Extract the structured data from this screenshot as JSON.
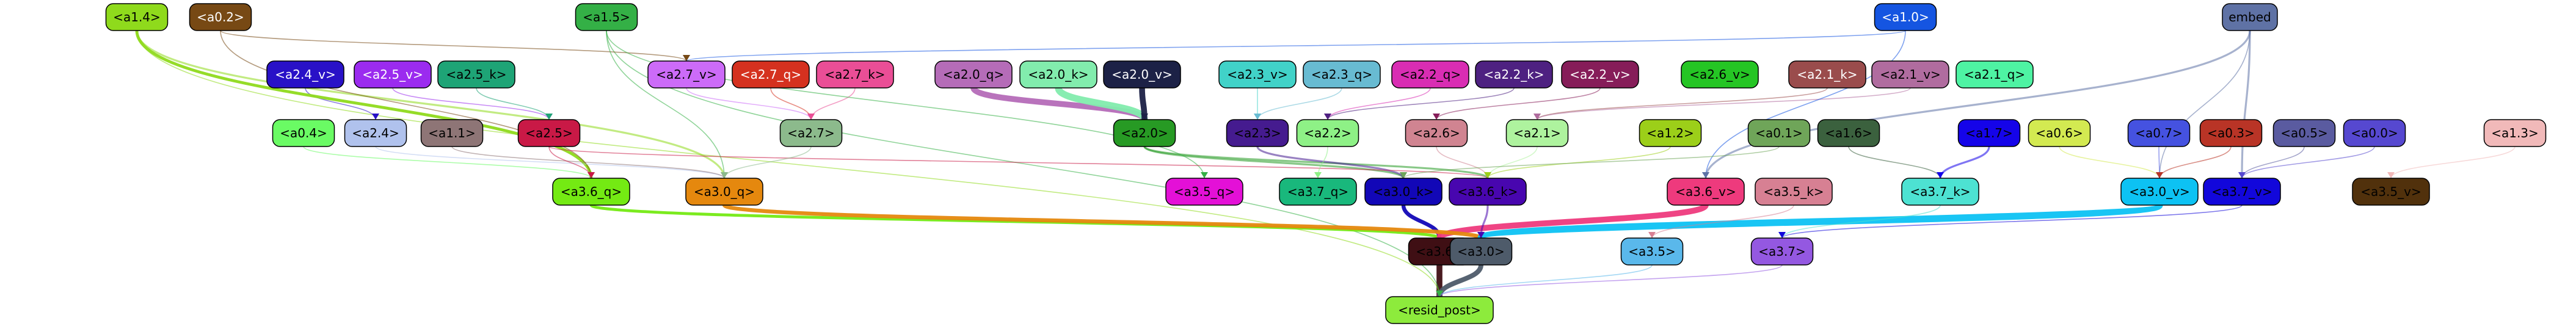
{
  "diagram": {
    "title": "",
    "nodes": [
      {
        "id": "a1.4",
        "label": "<a1.4>",
        "fill": "#8fda1c",
        "text": "#000000"
      },
      {
        "id": "a0.2",
        "label": "<a0.2>",
        "fill": "#774914",
        "text": "#ffffff"
      },
      {
        "id": "a1.5",
        "label": "<a1.5>",
        "fill": "#34b046",
        "text": "#000000"
      },
      {
        "id": "a1.0",
        "label": "<a1.0>",
        "fill": "#1555e1",
        "text": "#ffffff"
      },
      {
        "id": "embed",
        "label": "embed",
        "fill": "#5f72a5",
        "text": "#000000"
      },
      {
        "id": "a2.4_v",
        "label": "<a2.4_v>",
        "fill": "#2911c7",
        "text": "#ffffff"
      },
      {
        "id": "a2.5_v",
        "label": "<a2.5_v>",
        "fill": "#9b2bef",
        "text": "#ffffff"
      },
      {
        "id": "a2.5_k",
        "label": "<a2.5_k>",
        "fill": "#1ea476",
        "text": "#000000"
      },
      {
        "id": "a2.7_v",
        "label": "<a2.7_v>",
        "fill": "#cc6bf8",
        "text": "#000000"
      },
      {
        "id": "a2.7_q",
        "label": "<a2.7_q>",
        "fill": "#d5311f",
        "text": "#ffffff"
      },
      {
        "id": "a2.7_k",
        "label": "<a2.7_k>",
        "fill": "#ea4e96",
        "text": "#000000"
      },
      {
        "id": "a2.0_q",
        "label": "<a2.0_q>",
        "fill": "#b56cb8",
        "text": "#000000"
      },
      {
        "id": "a2.0_k",
        "label": "<a2.0_k>",
        "fill": "#82ecad",
        "text": "#000000"
      },
      {
        "id": "a2.0_v",
        "label": "<a2.0_v>",
        "fill": "#1c2146",
        "text": "#ffffff"
      },
      {
        "id": "a2.3_v",
        "label": "<a2.3_v>",
        "fill": "#41d2c8",
        "text": "#000000"
      },
      {
        "id": "a2.3_q",
        "label": "<a2.3_q>",
        "fill": "#68bbd2",
        "text": "#000000"
      },
      {
        "id": "a2.2_q",
        "label": "<a2.2_q>",
        "fill": "#d92db3",
        "text": "#000000"
      },
      {
        "id": "a2.2_k",
        "label": "<a2.2_k>",
        "fill": "#4e2181",
        "text": "#ffffff"
      },
      {
        "id": "a2.2_v",
        "label": "<a2.2_v>",
        "fill": "#861d59",
        "text": "#ffffff"
      },
      {
        "id": "a2.6_v",
        "label": "<a2.6_v>",
        "fill": "#25c524",
        "text": "#000000"
      },
      {
        "id": "a2.1_k",
        "label": "<a2.1_k>",
        "fill": "#9a4c4c",
        "text": "#ffffff"
      },
      {
        "id": "a2.1_v",
        "label": "<a2.1_v>",
        "fill": "#b06c9f",
        "text": "#000000"
      },
      {
        "id": "a2.1_q",
        "label": "<a2.1_q>",
        "fill": "#4ef3a3",
        "text": "#000000"
      },
      {
        "id": "a0.4",
        "label": "<a0.4>",
        "fill": "#6afb64",
        "text": "#000000"
      },
      {
        "id": "a2.4",
        "label": "<a2.4>",
        "fill": "#b0c2ed",
        "text": "#000000"
      },
      {
        "id": "a1.1",
        "label": "<a1.1>",
        "fill": "#8e7576",
        "text": "#000000"
      },
      {
        "id": "a2.5",
        "label": "<a2.5>",
        "fill": "#c91946",
        "text": "#000000"
      },
      {
        "id": "a2.7",
        "label": "<a2.7>",
        "fill": "#8cba8c",
        "text": "#000000"
      },
      {
        "id": "a2.0",
        "label": "<a2.0>",
        "fill": "#279a24",
        "text": "#000000"
      },
      {
        "id": "a2.3",
        "label": "<a2.3>",
        "fill": "#451b8f",
        "text": "#000000"
      },
      {
        "id": "a2.2",
        "label": "<a2.2>",
        "fill": "#8ef186",
        "text": "#000000"
      },
      {
        "id": "a2.6",
        "label": "<a2.6>",
        "fill": "#d08491",
        "text": "#000000"
      },
      {
        "id": "a2.1",
        "label": "<a2.1>",
        "fill": "#aef39e",
        "text": "#000000"
      },
      {
        "id": "a1.2",
        "label": "<a1.2>",
        "fill": "#9ccf19",
        "text": "#000000"
      },
      {
        "id": "a0.1",
        "label": "<a0.1>",
        "fill": "#6fa559",
        "text": "#000000"
      },
      {
        "id": "a1.6",
        "label": "<a1.6>",
        "fill": "#3b613e",
        "text": "#000000"
      },
      {
        "id": "a1.7",
        "label": "<a1.7>",
        "fill": "#1504e9",
        "text": "#000000"
      },
      {
        "id": "a0.6",
        "label": "<a0.6>",
        "fill": "#d3ea51",
        "text": "#000000"
      },
      {
        "id": "a0.7",
        "label": "<a0.7>",
        "fill": "#4552e0",
        "text": "#000000"
      },
      {
        "id": "a0.3",
        "label": "<a0.3>",
        "fill": "#b93426",
        "text": "#000000"
      },
      {
        "id": "a0.5",
        "label": "<a0.5>",
        "fill": "#5a5ba0",
        "text": "#000000"
      },
      {
        "id": "a0.0",
        "label": "<a0.0>",
        "fill": "#5648d0",
        "text": "#000000"
      },
      {
        "id": "a1.3",
        "label": "<a1.3>",
        "fill": "#f1b9b9",
        "text": "#000000"
      },
      {
        "id": "a3.6_q",
        "label": "<a3.6_q>",
        "fill": "#74ea13",
        "text": "#000000"
      },
      {
        "id": "a3.0_q",
        "label": "<a3.0_q>",
        "fill": "#e5880e",
        "text": "#000000"
      },
      {
        "id": "a3.5_q",
        "label": "<a3.5_q>",
        "fill": "#e410d7",
        "text": "#000000"
      },
      {
        "id": "a3.7_q",
        "label": "<a3.7_q>",
        "fill": "#19b87c",
        "text": "#000000"
      },
      {
        "id": "a3.0_k",
        "label": "<a3.0_k>",
        "fill": "#1207b7",
        "text": "#000000"
      },
      {
        "id": "a3.6_k",
        "label": "<a3.6_k>",
        "fill": "#4806af",
        "text": "#000000"
      },
      {
        "id": "a3.6_v",
        "label": "<a3.6_v>",
        "fill": "#ee3a7d",
        "text": "#000000"
      },
      {
        "id": "a3.5_k",
        "label": "<a3.5_k>",
        "fill": "#d78093",
        "text": "#000000"
      },
      {
        "id": "a3.7_k",
        "label": "<a3.7_k>",
        "fill": "#4de2d2",
        "text": "#000000"
      },
      {
        "id": "a3.0_v",
        "label": "<a3.0_v>",
        "fill": "#0dc2f3",
        "text": "#000000"
      },
      {
        "id": "a3.7_v",
        "label": "<a3.7_v>",
        "fill": "#1207db",
        "text": "#000000"
      },
      {
        "id": "a3.5_v",
        "label": "<a3.5_v>",
        "fill": "#51310c",
        "text": "#000000"
      },
      {
        "id": "a3.6",
        "label": "<a3.6>",
        "fill": "#3f0f14",
        "text": "#000000"
      },
      {
        "id": "a3.0",
        "label": "<a3.0>",
        "fill": "#4e5b6a",
        "text": "#000000"
      },
      {
        "id": "a3.5",
        "label": "<a3.5>",
        "fill": "#5ab8eb",
        "text": "#000000"
      },
      {
        "id": "a3.7",
        "label": "<a3.7>",
        "fill": "#9458e1",
        "text": "#000000"
      },
      {
        "id": "resid_post",
        "label": "<resid_post>",
        "fill": "#8deb3c",
        "text": "#000000"
      }
    ],
    "edges": [
      {
        "from": "a3.6",
        "to": "resid_post",
        "color": "#3f0f14",
        "weight": 6
      },
      {
        "from": "a3.0",
        "to": "resid_post",
        "color": "#4e5b6a",
        "weight": 5
      },
      {
        "from": "a3.5",
        "to": "resid_post",
        "color": "#5ab8eb",
        "weight": 1
      },
      {
        "from": "a3.7",
        "to": "resid_post",
        "color": "#9458e1",
        "weight": 1
      },
      {
        "from": "a1.4",
        "to": "resid_post",
        "color": "#8fda1c",
        "weight": 1
      },
      {
        "from": "a1.5",
        "to": "resid_post",
        "color": "#34b046",
        "weight": 1
      },
      {
        "from": "a3.6_q",
        "to": "a3.6",
        "color": "#74ea13",
        "weight": 3
      },
      {
        "from": "a3.0_k",
        "to": "a3.6",
        "color": "#1207b7",
        "weight": 4
      },
      {
        "from": "a3.6_v",
        "to": "a3.6",
        "color": "#ee3a7d",
        "weight": 6
      },
      {
        "from": "a3.0_q",
        "to": "a3.0",
        "color": "#e5880e",
        "weight": 4
      },
      {
        "from": "a3.0_v",
        "to": "a3.0",
        "color": "#0dc2f3",
        "weight": 7
      },
      {
        "from": "a3.6_k",
        "to": "a3.0",
        "color": "#4806af",
        "weight": 2
      },
      {
        "from": "a3.5_k",
        "to": "a3.5",
        "color": "#d78093",
        "weight": 1
      },
      {
        "from": "a3.7_k",
        "to": "a3.7",
        "color": "#4de2d2",
        "weight": 1
      },
      {
        "from": "a3.7_v",
        "to": "a3.7",
        "color": "#1207db",
        "weight": 1
      },
      {
        "from": "a2.0_q",
        "to": "a2.0",
        "color": "#b56cb8",
        "weight": 6
      },
      {
        "from": "a2.0_k",
        "to": "a2.0",
        "color": "#82ecad",
        "weight": 7
      },
      {
        "from": "a2.0_v",
        "to": "a2.0",
        "color": "#1c2146",
        "weight": 6
      },
      {
        "from": "a2.0",
        "to": "a3.0_k",
        "color": "#279a24",
        "weight": 2
      },
      {
        "from": "a2.0",
        "to": "a3.6_k",
        "color": "#279a24",
        "weight": 2
      },
      {
        "from": "a2.3",
        "to": "a3.0_k",
        "color": "#451b8f",
        "weight": 2
      },
      {
        "from": "a2.7_v",
        "to": "a2.7",
        "color": "#cc6bf8",
        "weight": 1
      },
      {
        "from": "a2.7_q",
        "to": "a2.7",
        "color": "#d5311f",
        "weight": 1
      },
      {
        "from": "a2.7_k",
        "to": "a2.7",
        "color": "#ea4e96",
        "weight": 1
      },
      {
        "from": "a2.5_v",
        "to": "a2.5",
        "color": "#9b2bef",
        "weight": 1
      },
      {
        "from": "a2.5_k",
        "to": "a2.5",
        "color": "#1ea476",
        "weight": 1
      },
      {
        "from": "a2.4_v",
        "to": "a2.4",
        "color": "#2911c7",
        "weight": 1
      },
      {
        "from": "a2.3_v",
        "to": "a2.3",
        "color": "#41d2c8",
        "weight": 1
      },
      {
        "from": "a2.3_q",
        "to": "a2.3",
        "color": "#68bbd2",
        "weight": 1
      },
      {
        "from": "a2.2_q",
        "to": "a2.2",
        "color": "#d92db3",
        "weight": 1
      },
      {
        "from": "a2.2_k",
        "to": "a2.2",
        "color": "#4e2181",
        "weight": 1
      },
      {
        "from": "a2.2_v",
        "to": "a2.6",
        "color": "#861d59",
        "weight": 1
      },
      {
        "from": "a2.1_k",
        "to": "a2.1",
        "color": "#9a4c4c",
        "weight": 1
      },
      {
        "from": "a2.1_v",
        "to": "a2.1",
        "color": "#b06c9f",
        "weight": 1
      },
      {
        "from": "a1.0",
        "to": "a2.7_v",
        "color": "#1555e1",
        "weight": 1
      },
      {
        "from": "a1.0",
        "to": "a3.6_v",
        "color": "#1555e1",
        "weight": 1
      },
      {
        "from": "embed",
        "to": "a3.6_v",
        "color": "#5f72a5",
        "weight": 2
      },
      {
        "from": "embed",
        "to": "a3.7_v",
        "color": "#5f72a5",
        "weight": 2
      },
      {
        "from": "embed",
        "to": "a3.0_v",
        "color": "#5f72a5",
        "weight": 1
      },
      {
        "from": "a1.4",
        "to": "a3.6_q",
        "color": "#8fda1c",
        "weight": 3
      },
      {
        "from": "a1.4",
        "to": "a3.0_q",
        "color": "#8fda1c",
        "weight": 2
      },
      {
        "from": "a0.2",
        "to": "a3.6_q",
        "color": "#774914",
        "weight": 1
      },
      {
        "from": "a0.2",
        "to": "a2.7_v",
        "color": "#774914",
        "weight": 1
      },
      {
        "from": "a1.5",
        "to": "a3.0_q",
        "color": "#34b046",
        "weight": 1
      },
      {
        "from": "a1.5",
        "to": "a3.5_q",
        "color": "#34b046",
        "weight": 1
      },
      {
        "from": "a0.4",
        "to": "a3.6_q",
        "color": "#6afb64",
        "weight": 1
      },
      {
        "from": "a2.4",
        "to": "a3.0_q",
        "color": "#b0c2ed",
        "weight": 1
      },
      {
        "from": "a1.1",
        "to": "a3.0_q",
        "color": "#8e7576",
        "weight": 1
      },
      {
        "from": "a2.5",
        "to": "a3.6_q",
        "color": "#c91946",
        "weight": 1
      },
      {
        "from": "a2.5",
        "to": "a3.6_k",
        "color": "#c91946",
        "weight": 1
      },
      {
        "from": "a2.7",
        "to": "a3.0_q",
        "color": "#8cba8c",
        "weight": 1
      },
      {
        "from": "a2.2",
        "to": "a3.7_q",
        "color": "#8ef186",
        "weight": 1
      },
      {
        "from": "a2.6",
        "to": "a3.6_k",
        "color": "#d08491",
        "weight": 1
      },
      {
        "from": "a2.1",
        "to": "a3.6_k",
        "color": "#aef39e",
        "weight": 1
      },
      {
        "from": "a1.2",
        "to": "a3.6_k",
        "color": "#9ccf19",
        "weight": 1
      },
      {
        "from": "a0.1",
        "to": "a3.0_k",
        "color": "#6fa559",
        "weight": 1
      },
      {
        "from": "a1.6",
        "to": "a3.7_k",
        "color": "#3b613e",
        "weight": 1
      },
      {
        "from": "a1.7",
        "to": "a3.7_k",
        "color": "#1504e9",
        "weight": 2
      },
      {
        "from": "a0.6",
        "to": "a3.0_v",
        "color": "#d3ea51",
        "weight": 1
      },
      {
        "from": "a0.7",
        "to": "a3.0_v",
        "color": "#4552e0",
        "weight": 1
      },
      {
        "from": "a0.3",
        "to": "a3.0_v",
        "color": "#b93426",
        "weight": 1
      },
      {
        "from": "a0.5",
        "to": "a3.7_v",
        "color": "#5a5ba0",
        "weight": 1
      },
      {
        "from": "a0.0",
        "to": "a3.7_v",
        "color": "#5648d0",
        "weight": 1
      },
      {
        "from": "a1.3",
        "to": "a3.5_v",
        "color": "#f1b9b9",
        "weight": 1
      }
    ]
  }
}
